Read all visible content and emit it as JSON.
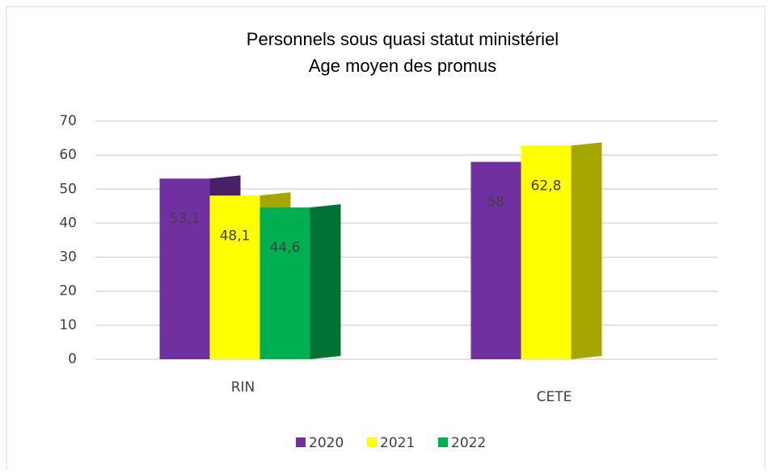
{
  "chart_data": {
    "type": "bar3d",
    "title": "Personnels sous quasi statut ministériel",
    "subtitle": "Age moyen des promus",
    "categories": [
      "RIN",
      "CETE"
    ],
    "series": [
      {
        "name": "2020",
        "color": "#7030a0",
        "values": [
          53.1,
          58
        ],
        "value_labels": [
          "53,1",
          "58"
        ]
      },
      {
        "name": "2021",
        "color": "#ffff00",
        "values": [
          48.1,
          62.8
        ],
        "value_labels": [
          "48,1",
          "62,8"
        ]
      },
      {
        "name": "2022",
        "color": "#00b050",
        "values": [
          44.6,
          null
        ],
        "value_labels": [
          "44,6",
          null
        ]
      }
    ],
    "ylim": [
      0,
      70
    ],
    "yticks": [
      0,
      10,
      20,
      30,
      40,
      50,
      60,
      70
    ],
    "grid": true,
    "legend": "bottom"
  }
}
